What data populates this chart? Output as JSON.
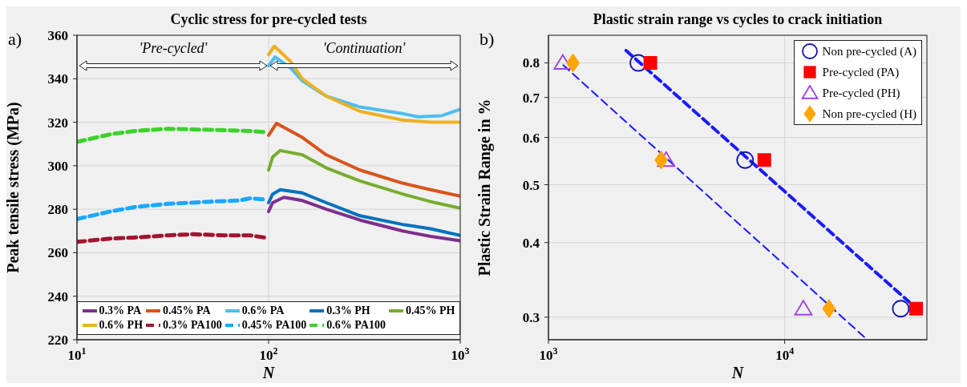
{
  "chart_data": [
    {
      "type": "line",
      "title": "Cyclic stress for pre-cycled tests",
      "xlabel": "N",
      "ylabel": "Peak tensile stress (MPa)",
      "log": "x",
      "xlim": [
        10,
        1000
      ],
      "xticks": [
        {
          "value": 10,
          "label": "10$^{1}$"
        },
        {
          "value": 100,
          "label": "10$^{2}$"
        },
        {
          "value": 1000,
          "label": "10$^{3}$"
        }
      ],
      "ylim": [
        220,
        360
      ],
      "yticks": [
        220,
        240,
        260,
        280,
        300,
        320,
        340,
        360
      ],
      "grid": true,
      "legend": "bottom",
      "annotations": [
        "a)",
        "'Pre-cycled'",
        "'Continuation'"
      ],
      "series": [
        {
          "name": "0.3% PA",
          "color": "#7e2f8e",
          "line_style": "solid",
          "x": [
            100,
            105,
            120,
            150,
            200,
            300,
            500,
            700,
            1000
          ],
          "values": [
            279,
            283,
            285.5,
            284,
            280,
            275,
            270,
            267.5,
            265.5
          ]
        },
        {
          "name": "0.45% PA",
          "color": "#d95319",
          "line_style": "solid",
          "x": [
            100,
            110,
            150,
            200,
            300,
            500,
            700,
            1000
          ],
          "values": [
            314,
            319.5,
            313,
            305,
            298,
            292,
            289,
            286
          ]
        },
        {
          "name": "0.6% PA",
          "color": "#4dbeee",
          "line_style": "solid",
          "x": [
            100,
            108,
            130,
            150,
            200,
            300,
            500,
            600,
            800,
            1000
          ],
          "values": [
            346,
            350,
            345,
            339,
            332,
            327,
            324,
            322.5,
            323,
            326
          ]
        },
        {
          "name": "0.3% PH",
          "color": "#0072bd",
          "line_style": "solid",
          "x": [
            100,
            105,
            115,
            150,
            200,
            300,
            500,
            700,
            1000
          ],
          "values": [
            283,
            287,
            289,
            287.5,
            283,
            277,
            273,
            271,
            268
          ]
        },
        {
          "name": "0.45% PH",
          "color": "#77ac30",
          "line_style": "solid",
          "x": [
            100,
            105,
            115,
            150,
            200,
            300,
            500,
            700,
            1000
          ],
          "values": [
            298,
            304,
            307,
            305,
            299,
            293,
            287,
            283.5,
            280.5
          ]
        },
        {
          "name": "0.6% PH",
          "color": "#edb120",
          "line_style": "solid",
          "x": [
            100,
            107,
            130,
            150,
            200,
            300,
            500,
            700,
            1000
          ],
          "values": [
            351,
            355,
            348,
            340,
            332,
            325,
            321,
            320,
            320
          ]
        },
        {
          "name": "0.3% PA100",
          "color": "#a2142f",
          "line_style": "dashed",
          "x": [
            10,
            15,
            20,
            30,
            40,
            60,
            80,
            95
          ],
          "values": [
            265,
            266.5,
            267,
            268,
            268.5,
            268,
            268,
            267
          ]
        },
        {
          "name": "0.45% PA100",
          "color": "#1aa7ff",
          "line_style": "dashed",
          "x": [
            10,
            15,
            20,
            30,
            50,
            70,
            80,
            95
          ],
          "values": [
            275.5,
            279,
            281,
            282.5,
            283.5,
            284,
            285,
            284.5
          ]
        },
        {
          "name": "0.6% PA100",
          "color": "#3cd22c",
          "line_style": "dashed",
          "x": [
            10,
            15,
            20,
            30,
            50,
            80,
            95
          ],
          "values": [
            311,
            314.5,
            316,
            317,
            316.5,
            316,
            315.5
          ]
        }
      ]
    },
    {
      "type": "scatter",
      "title": "Plastic strain range vs cycles to crack initiation",
      "xlabel": "N",
      "ylabel": "Plastic Strain Range in  %",
      "log": "xy",
      "xlim": [
        1000,
        40000
      ],
      "xticks": [
        {
          "value": 1000,
          "label": "10$^{3}$"
        },
        {
          "value": 10000,
          "label": "10$^{4}$"
        }
      ],
      "ylim": [
        0.275,
        0.89
      ],
      "yticks": [
        0.3,
        0.4,
        0.5,
        0.6,
        0.7,
        0.8
      ],
      "grid": true,
      "legend": "top right",
      "annotations": [
        "b)"
      ],
      "series": [
        {
          "name": "Non pre-cycled (A)",
          "color": "#1414b4",
          "marker": "circle",
          "x": [
            2400,
            6800,
            31000
          ],
          "values": [
            0.8,
            0.55,
            0.31
          ]
        },
        {
          "name": "Pre-cycled (PA)",
          "color": "#ff0000",
          "marker": "square",
          "x": [
            2700,
            8200,
            36000
          ],
          "values": [
            0.8,
            0.55,
            0.31
          ]
        },
        {
          "name": "Pre-cycled (PH)",
          "color": "#a040e0",
          "marker": "triangle",
          "x": [
            1150,
            3150,
            12000
          ],
          "values": [
            0.8,
            0.55,
            0.31
          ]
        },
        {
          "name": "Non pre-cycled (H)",
          "color": "#ffa500",
          "marker": "diamond",
          "x": [
            1270,
            3000,
            15400
          ],
          "values": [
            0.8,
            0.55,
            0.31
          ]
        },
        {
          "type": "line",
          "color": "#1a1aff",
          "line_style": "dashed",
          "x": [
            2130,
            33700
          ],
          "values": [
            0.839,
            0.318
          ]
        },
        {
          "type": "line",
          "color": "#1a1aff",
          "line_style": "dashed",
          "x": [
            1155,
            21700
          ],
          "values": [
            0.793,
            0.278
          ]
        }
      ]
    }
  ]
}
